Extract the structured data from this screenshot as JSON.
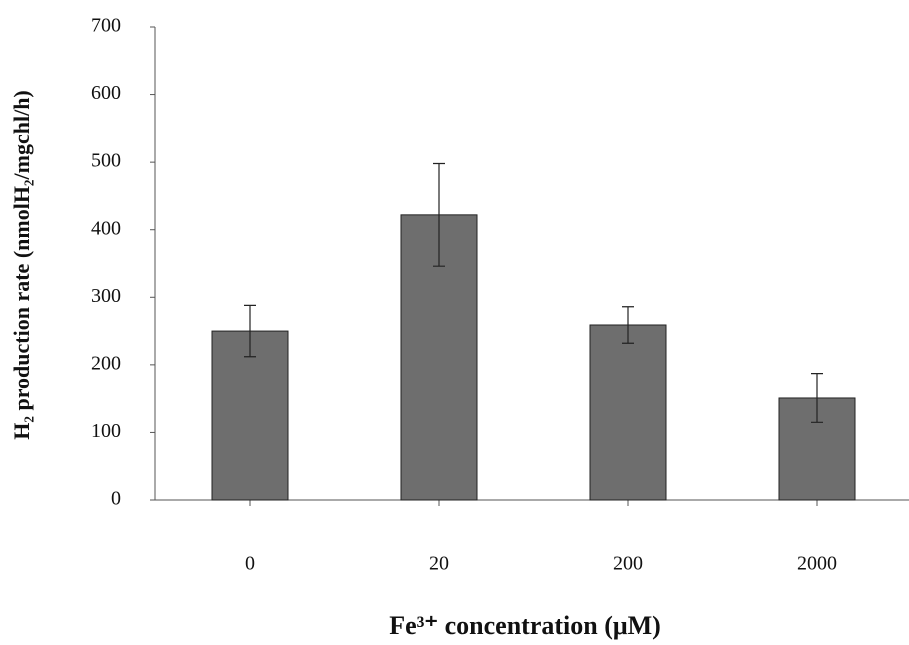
{
  "chart_data": {
    "type": "bar",
    "categories": [
      "0",
      "20",
      "200",
      "2000"
    ],
    "values": [
      250,
      422,
      259,
      151
    ],
    "errors": [
      38,
      76,
      27,
      36
    ],
    "color": "#6e6e6e",
    "ylim": [
      0,
      700
    ],
    "yticks": [
      0,
      100,
      200,
      300,
      400,
      500,
      600,
      700
    ],
    "ylabel": "H₂ production rate (nmolH₂/mgchl/h)",
    "xlabel": "Fe³⁺ concentration (μM)"
  }
}
